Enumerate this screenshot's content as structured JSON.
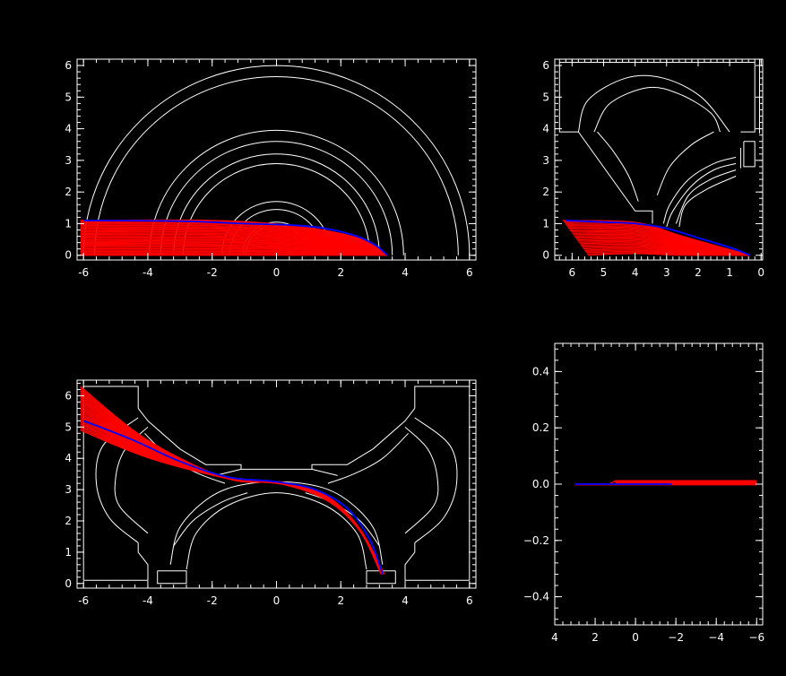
{
  "colors": {
    "background": "#000000",
    "structure": "#ffffff",
    "trajectory": "#ff0000",
    "reference_trajectory": "#0000ff"
  },
  "chart_data": [
    {
      "id": "top-left",
      "type": "line",
      "title": "",
      "xlabel": "",
      "ylabel": "",
      "xlim": [
        -6.2,
        6.2
      ],
      "ylim": [
        -0.15,
        6.2
      ],
      "x_ticks": [
        -6,
        -4,
        -2,
        0,
        2,
        4,
        6
      ],
      "x_tick_labels": [
        "-6",
        "-4",
        "-2",
        "0",
        "2",
        "4",
        "6"
      ],
      "y_ticks": [
        0,
        1,
        2,
        3,
        4,
        5,
        6
      ],
      "y_tick_labels": [
        "0",
        "1",
        "2",
        "3",
        "4",
        "5",
        "6"
      ],
      "structure": {
        "arcs": [
          {
            "cx": 0,
            "cy": 0,
            "r": 6.0
          },
          {
            "cx": 0,
            "cy": 0,
            "r": 5.65
          },
          {
            "cx": 0,
            "cy": 0,
            "r": 3.95
          },
          {
            "cx": 0,
            "cy": 0,
            "r": 3.6
          },
          {
            "cx": 0,
            "cy": 0,
            "r": 3.2
          },
          {
            "cx": 0,
            "cy": 0,
            "r": 2.9
          },
          {
            "cx": 0,
            "cy": 0,
            "r": 1.7
          },
          {
            "cx": 0,
            "cy": 0,
            "r": 1.45
          },
          {
            "cx": 0,
            "cy": 0,
            "r": 1.05
          },
          {
            "cx": 0,
            "cy": 0,
            "r": 0.95
          }
        ]
      },
      "reference_trajectory": [
        [
          -6,
          1.1
        ],
        [
          -3,
          1.08
        ],
        [
          -1,
          1.0
        ],
        [
          0.5,
          0.95
        ],
        [
          1.5,
          0.85
        ],
        [
          2.5,
          0.6
        ],
        [
          3.1,
          0.3
        ],
        [
          3.45,
          0.0
        ]
      ],
      "trajectory_bundle": {
        "end": [
          3.45,
          0.0
        ],
        "x_start": -6.1,
        "y_start_range": [
          0.0,
          1.1
        ],
        "count": 28
      }
    },
    {
      "id": "top-right",
      "type": "line",
      "title": "",
      "xlabel": "",
      "ylabel": "",
      "xlim": [
        6.55,
        -0.05
      ],
      "ylim": [
        -0.15,
        6.2
      ],
      "x_ticks": [
        6,
        5,
        4,
        3,
        2,
        1,
        0
      ],
      "x_tick_labels": [
        "6",
        "5",
        "4",
        "3",
        "2",
        "1",
        "0"
      ],
      "y_ticks": [
        0,
        1,
        2,
        3,
        4,
        5,
        6
      ],
      "y_tick_labels": [
        "0",
        "1",
        "2",
        "3",
        "4",
        "5",
        "6"
      ],
      "structure": {
        "lines": [
          [
            [
              6.4,
              6.1
            ],
            [
              0.2,
              6.1
            ],
            [
              0.2,
              3.9
            ],
            [
              0.65,
              3.9
            ]
          ],
          [
            [
              6.5,
              6.2
            ],
            [
              0.05,
              6.2
            ],
            [
              0.05,
              3.85
            ]
          ],
          [
            [
              6.4,
              6.1
            ],
            [
              6.4,
              3.9
            ],
            [
              5.8,
              3.9
            ],
            [
              4.0,
              1.4
            ],
            [
              3.45,
              1.4
            ],
            [
              3.45,
              1.0
            ]
          ],
          [
            [
              0.55,
              3.6
            ],
            [
              0.55,
              2.8
            ],
            [
              0.2,
              2.8
            ],
            [
              0.2,
              3.6
            ],
            [
              0.55,
              3.6
            ]
          ],
          [
            [
              0.65,
              3.4
            ],
            [
              0.65,
              2.75
            ]
          ]
        ],
        "curves": [
          [
            [
              5.8,
              3.9
            ],
            [
              5.5,
              4.9
            ],
            [
              4.3,
              5.6
            ],
            [
              3.1,
              5.6
            ],
            [
              1.9,
              5.0
            ],
            [
              1.0,
              3.9
            ]
          ],
          [
            [
              5.3,
              3.9
            ],
            [
              4.8,
              4.8
            ],
            [
              3.6,
              5.3
            ],
            [
              2.6,
              5.1
            ],
            [
              1.6,
              4.5
            ],
            [
              1.3,
              3.9
            ]
          ],
          [
            [
              5.2,
              3.9
            ],
            [
              4.7,
              3.3
            ],
            [
              4.2,
              2.5
            ],
            [
              3.9,
              1.7
            ]
          ],
          [
            [
              1.5,
              3.9
            ],
            [
              2.2,
              3.5
            ],
            [
              2.9,
              2.8
            ],
            [
              3.3,
              1.9
            ]
          ],
          [
            [
              0.8,
              3.1
            ],
            [
              1.5,
              2.9
            ],
            [
              2.3,
              2.4
            ],
            [
              2.9,
              1.6
            ],
            [
              3.1,
              1.0
            ]
          ],
          [
            [
              0.8,
              2.9
            ],
            [
              1.5,
              2.7
            ],
            [
              2.2,
              2.2
            ],
            [
              2.8,
              1.4
            ],
            [
              3.0,
              0.9
            ]
          ],
          [
            [
              0.8,
              2.7
            ],
            [
              1.6,
              2.4
            ],
            [
              2.3,
              1.9
            ],
            [
              2.7,
              1.0
            ]
          ],
          [
            [
              0.8,
              2.5
            ],
            [
              1.7,
              2.1
            ],
            [
              2.4,
              1.6
            ],
            [
              2.6,
              0.9
            ]
          ]
        ]
      },
      "reference_trajectory": [
        [
          6.2,
          1.1
        ],
        [
          5.0,
          1.05
        ],
        [
          4.0,
          1.0
        ],
        [
          3.0,
          0.85
        ],
        [
          2.0,
          0.55
        ],
        [
          1.0,
          0.25
        ],
        [
          0.35,
          0.0
        ]
      ],
      "trajectory_bundle": {
        "end": [
          0.35,
          0.0
        ],
        "x_start_range": [
          6.3,
          4.0
        ],
        "y_start_range": [
          0.0,
          1.1
        ],
        "count": 28
      }
    },
    {
      "id": "bottom-left",
      "type": "line",
      "title": "",
      "xlabel": "",
      "ylabel": "",
      "xlim": [
        -6.2,
        6.2
      ],
      "ylim": [
        -0.15,
        6.5
      ],
      "x_ticks": [
        -6,
        -4,
        -2,
        0,
        2,
        4,
        6
      ],
      "x_tick_labels": [
        "-6",
        "-4",
        "-2",
        "0",
        "2",
        "4",
        "6"
      ],
      "y_ticks": [
        0,
        1,
        2,
        3,
        4,
        5,
        6
      ],
      "y_tick_labels": [
        "0",
        "1",
        "2",
        "3",
        "4",
        "5",
        "6"
      ],
      "structure": {
        "lines": [
          [
            [
              -6.0,
              0.1
            ],
            [
              -4.0,
              0.1
            ],
            [
              -4.0,
              0.6
            ],
            [
              -4.3,
              1.0
            ],
            [
              -4.3,
              1.3
            ]
          ],
          [
            [
              -4.3,
              5.6
            ],
            [
              -4.3,
              6.3
            ],
            [
              -6.0,
              6.3
            ],
            [
              -6.0,
              0.1
            ]
          ],
          [
            [
              6.0,
              0.1
            ],
            [
              4.0,
              0.1
            ],
            [
              4.0,
              0.6
            ],
            [
              4.3,
              1.0
            ],
            [
              4.3,
              1.3
            ]
          ],
          [
            [
              4.3,
              5.6
            ],
            [
              4.3,
              6.3
            ],
            [
              6.0,
              6.3
            ],
            [
              6.0,
              0.1
            ]
          ],
          [
            [
              -4.3,
              5.6
            ],
            [
              -4.0,
              5.2
            ],
            [
              -3.0,
              4.3
            ],
            [
              -2.2,
              3.8
            ],
            [
              -1.1,
              3.8
            ],
            [
              -1.1,
              3.65
            ],
            [
              1.1,
              3.65
            ],
            [
              1.1,
              3.8
            ],
            [
              2.2,
              3.8
            ],
            [
              3.0,
              4.3
            ],
            [
              4.0,
              5.2
            ],
            [
              4.3,
              5.6
            ]
          ],
          [
            [
              -3.7,
              0.4
            ],
            [
              -2.8,
              0.4
            ],
            [
              -2.8,
              0.0
            ],
            [
              -3.7,
              0.0
            ],
            [
              -3.7,
              0.4
            ]
          ],
          [
            [
              3.7,
              0.4
            ],
            [
              2.8,
              0.4
            ],
            [
              2.8,
              0.0
            ],
            [
              3.7,
              0.0
            ],
            [
              3.7,
              0.4
            ]
          ],
          [
            [
              -1.1,
              3.65
            ],
            [
              -1.9,
              3.45
            ]
          ],
          [
            [
              1.1,
              3.65
            ],
            [
              1.9,
              3.45
            ]
          ]
        ],
        "curves": [
          [
            [
              -4.3,
              1.3
            ],
            [
              -5.2,
              2.1
            ],
            [
              -5.6,
              3.2
            ],
            [
              -5.4,
              4.4
            ],
            [
              -4.3,
              5.3
            ]
          ],
          [
            [
              -4.0,
              1.6
            ],
            [
              -4.9,
              2.5
            ],
            [
              -5.0,
              3.4
            ],
            [
              -4.7,
              4.3
            ],
            [
              -4.0,
              5.0
            ]
          ],
          [
            [
              4.3,
              1.3
            ],
            [
              5.2,
              2.1
            ],
            [
              5.6,
              3.2
            ],
            [
              5.4,
              4.4
            ],
            [
              4.3,
              5.3
            ]
          ],
          [
            [
              4.0,
              1.6
            ],
            [
              4.9,
              2.5
            ],
            [
              5.0,
              3.4
            ],
            [
              4.7,
              4.3
            ],
            [
              4.0,
              5.0
            ]
          ],
          [
            [
              -3.3,
              0.6
            ],
            [
              -3.0,
              1.8
            ],
            [
              -2.0,
              2.8
            ],
            [
              -0.8,
              3.2
            ],
            [
              0.8,
              3.2
            ],
            [
              2.0,
              2.8
            ],
            [
              3.0,
              1.8
            ],
            [
              3.3,
              0.6
            ]
          ],
          [
            [
              -2.8,
              0.45
            ],
            [
              -2.5,
              1.6
            ],
            [
              -1.5,
              2.5
            ],
            [
              0,
              2.9
            ],
            [
              1.5,
              2.5
            ],
            [
              2.5,
              1.6
            ],
            [
              2.8,
              0.45
            ]
          ],
          [
            [
              -3.2,
              1.2
            ],
            [
              -2.6,
              2.0
            ],
            [
              -1.7,
              2.6
            ],
            [
              -0.9,
              2.9
            ]
          ],
          [
            [
              3.2,
              1.2
            ],
            [
              2.6,
              2.0
            ],
            [
              1.7,
              2.6
            ],
            [
              0.9,
              2.9
            ]
          ],
          [
            [
              -4.1,
              4.8
            ],
            [
              -3.3,
              4.0
            ],
            [
              -2.4,
              3.5
            ],
            [
              -1.6,
              3.2
            ]
          ],
          [
            [
              4.1,
              4.8
            ],
            [
              3.3,
              4.0
            ],
            [
              2.4,
              3.5
            ],
            [
              1.6,
              3.2
            ]
          ]
        ]
      },
      "reference_trajectory": [
        [
          -6.0,
          5.2
        ],
        [
          -4.5,
          4.6
        ],
        [
          -3.0,
          3.9
        ],
        [
          -1.5,
          3.4
        ],
        [
          0,
          3.25
        ],
        [
          1.2,
          3.0
        ],
        [
          2.2,
          2.4
        ],
        [
          2.9,
          1.4
        ],
        [
          3.3,
          0.3
        ]
      ],
      "trajectory_bundle": {
        "pivot": [
          -1.5,
          3.35
        ],
        "end": [
          3.3,
          0.3
        ],
        "x_start": -6.1,
        "y_start_range": [
          4.9,
          6.3
        ],
        "end_spread": 0.35,
        "count": 30
      }
    },
    {
      "id": "bottom-right",
      "type": "line",
      "title": "",
      "xlabel": "",
      "ylabel": "",
      "xlim": [
        4,
        -6.3
      ],
      "ylim": [
        -0.5,
        0.5
      ],
      "x_ticks": [
        4,
        2,
        0,
        -2,
        -4,
        -6
      ],
      "x_tick_labels": [
        "4",
        "2",
        "0",
        "−2",
        "−4",
        "−6"
      ],
      "y_ticks": [
        -0.4,
        -0.2,
        0.0,
        0.2,
        0.4
      ],
      "y_tick_labels": [
        "−0.4",
        "−0.2",
        "0.0",
        "0.2",
        "0.4"
      ],
      "reference_trajectory": [
        [
          3.0,
          0.0
        ],
        [
          1.0,
          0.0
        ],
        [
          -1.8,
          0.0
        ]
      ],
      "trajectory_bundle": {
        "upper": [
          [
            3.0,
            0.0
          ],
          [
            1.3,
            0.0
          ],
          [
            1.0,
            0.012
          ],
          [
            -6.0,
            0.012
          ]
        ],
        "lower": [
          [
            3.0,
            -0.002
          ],
          [
            -6.0,
            -0.002
          ]
        ],
        "x_range": [
          3.0,
          -6.0
        ],
        "count": 10
      }
    }
  ]
}
